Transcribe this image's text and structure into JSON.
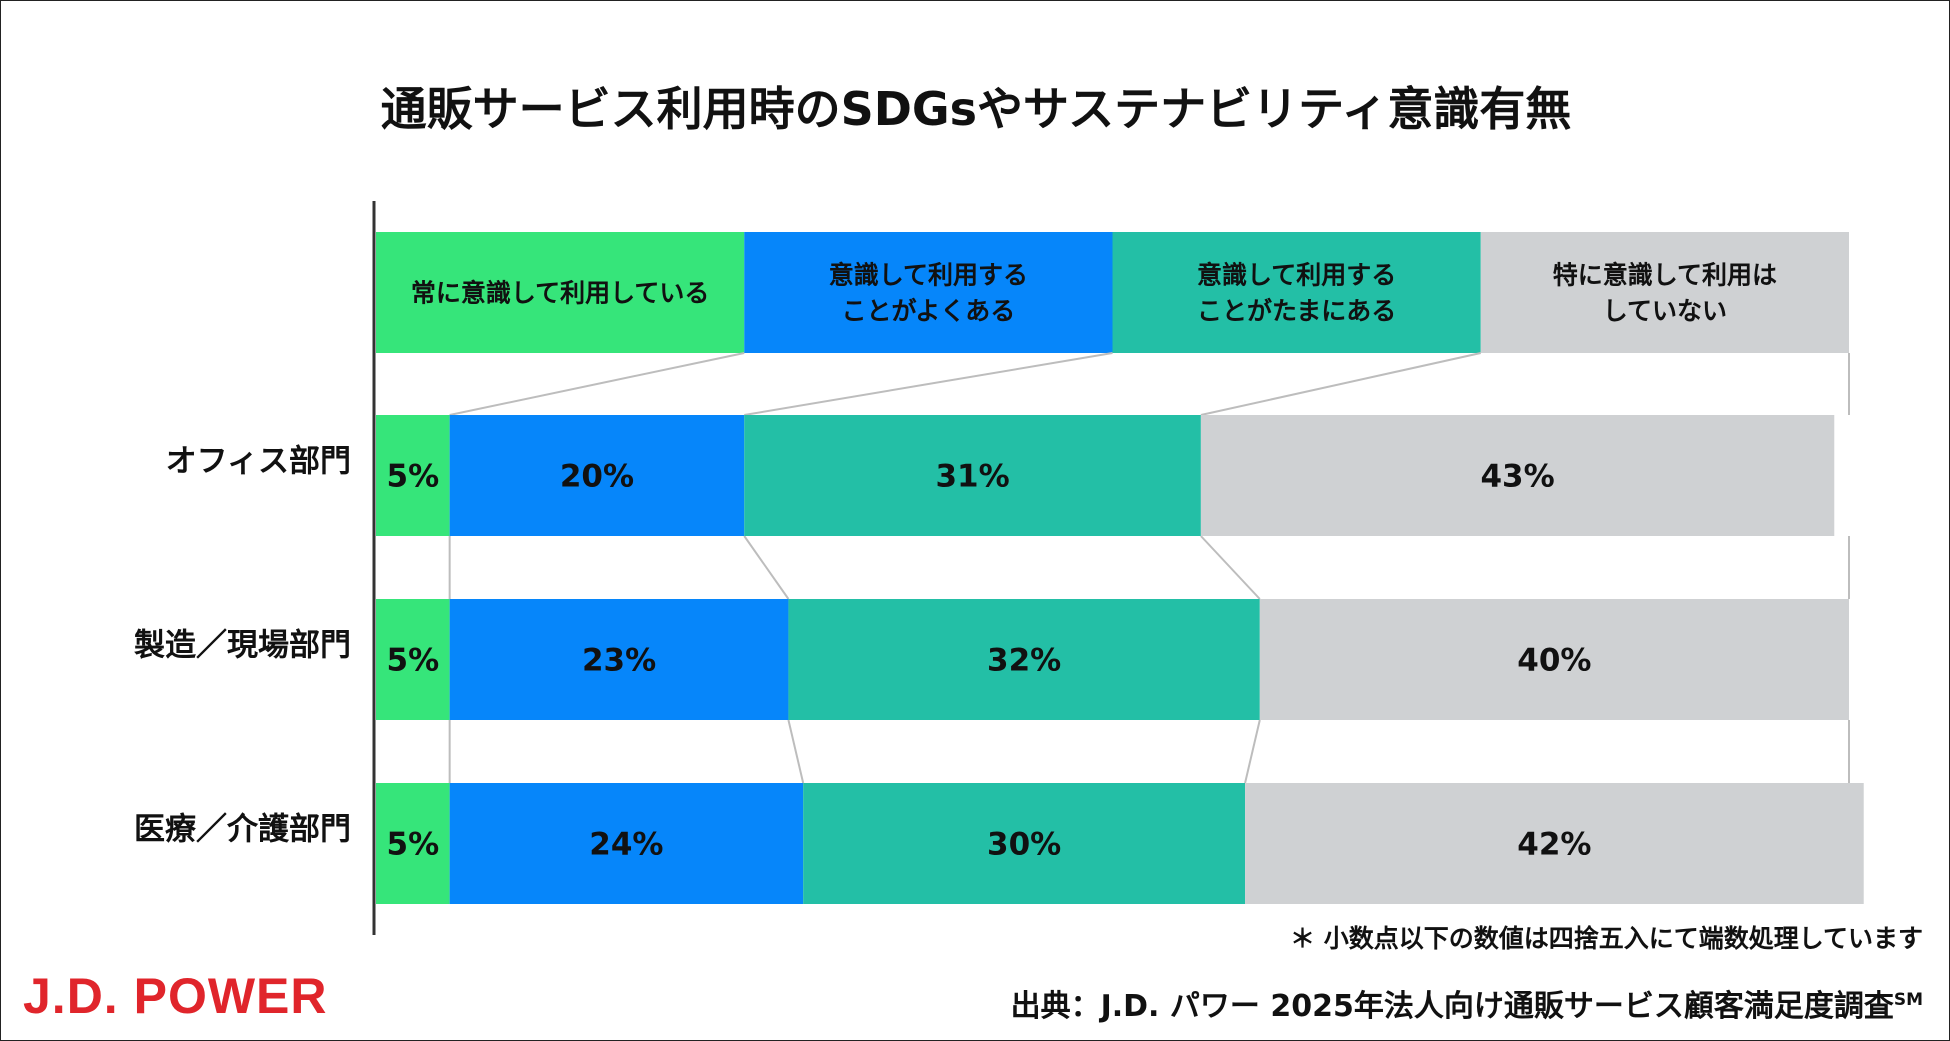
{
  "chart_data": {
    "type": "bar",
    "orientation": "horizontal-stacked-100",
    "title": "通販サービス利用時のSDGsやサステナビリティ意識有無",
    "categories": [
      "オフィス部門",
      "製造／現場部門",
      "医療／介護部門"
    ],
    "series": [
      {
        "name": "常に意識して利用している",
        "legend_lines": [
          "常に意識して利用している"
        ],
        "color": "#36e57a",
        "values": [
          5,
          5,
          5
        ],
        "labels": [
          "5%",
          "5%",
          "5%"
        ]
      },
      {
        "name": "意識して利用することがよくある",
        "legend_lines": [
          "意識して利用する",
          "ことがよくある"
        ],
        "color": "#0686fa",
        "values": [
          20,
          23,
          24
        ],
        "labels": [
          "20%",
          "23%",
          "24%"
        ]
      },
      {
        "name": "意識して利用することがたまにある",
        "legend_lines": [
          "意識して利用する",
          "ことがたまにある"
        ],
        "color": "#23bfa6",
        "values": [
          31,
          32,
          30
        ],
        "labels": [
          "31%",
          "32%",
          "30%"
        ]
      },
      {
        "name": "特に意識して利用はしていない",
        "legend_lines": [
          "特に意識して利用は",
          "していない"
        ],
        "color": "#cfd1d3",
        "values": [
          43,
          40,
          42
        ],
        "labels": [
          "43%",
          "40%",
          "42%"
        ]
      }
    ],
    "xlim": [
      0,
      100
    ],
    "grid": false,
    "legend_position": "top"
  },
  "footer": {
    "note": "＊ 小数点以下の数値は四捨五入にて端数処理しています",
    "source": "出典：J.D. パワー 2025年法人向け通販サービス顧客満足度調査",
    "source_sup": "SM",
    "logo": "J.D. POWER"
  }
}
